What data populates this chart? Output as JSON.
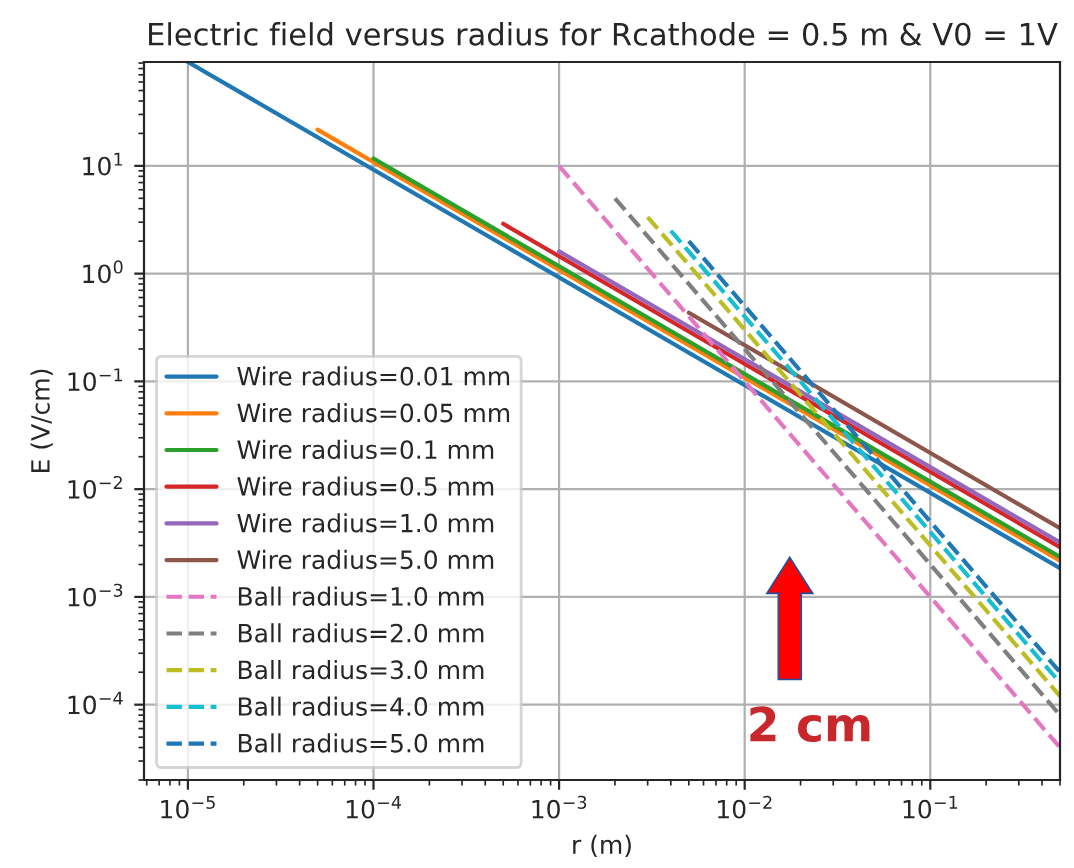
{
  "chart_data": {
    "type": "line",
    "title": "Electric field versus radius for Rcathode = 0.5 m & V0 = 1V",
    "xlabel": "r (m)",
    "ylabel": "E (V/cm)",
    "log": "xy",
    "grid": true,
    "legend": "bottom left",
    "marker": "none",
    "xlim": [
      5.8e-06,
      0.5
    ],
    "ylim": [
      2e-05,
      92
    ],
    "xticks": [
      {
        "value": 1e-05,
        "label": "10$^{−5}$"
      },
      {
        "value": 0.0001,
        "label": "10$^{−4}$"
      },
      {
        "value": 0.001,
        "label": "10$^{−3}$"
      },
      {
        "value": 0.01,
        "label": "10$^{−2}$"
      },
      {
        "value": 0.1,
        "label": "10$^{−1}$"
      }
    ],
    "yticks": [
      {
        "value": 0.0001,
        "label": "10$^{−4}$"
      },
      {
        "value": 0.001,
        "label": "10$^{−3}$"
      },
      {
        "value": 0.01,
        "label": "10$^{−2}$"
      },
      {
        "value": 0.1,
        "label": "10$^{−1}$"
      },
      {
        "value": 1,
        "label": "10$^{0}$"
      },
      {
        "value": 10,
        "label": "10$^{1}$"
      }
    ],
    "series": [
      {
        "name": "Wire radius=0.01 mm",
        "color": "#1f77b4",
        "line_style": "solid",
        "x": [
          1e-05,
          0.5
        ],
        "values": [
          92,
          0.00185
        ]
      },
      {
        "name": "Wire radius=0.05 mm",
        "color": "#ff7f0e",
        "line_style": "solid",
        "x": [
          5e-05,
          0.5
        ],
        "values": [
          21.7,
          0.00217
        ]
      },
      {
        "name": "Wire radius=0.1 mm",
        "color": "#2ca02c",
        "line_style": "solid",
        "x": [
          0.0001,
          0.5
        ],
        "values": [
          11.7,
          0.00235
        ]
      },
      {
        "name": "Wire radius=0.5 mm",
        "color": "#d62728",
        "line_style": "solid",
        "x": [
          0.0005,
          0.5
        ],
        "values": [
          2.9,
          0.0029
        ]
      },
      {
        "name": "Wire radius=1.0 mm",
        "color": "#9467bd",
        "line_style": "solid",
        "x": [
          0.001,
          0.5
        ],
        "values": [
          1.61,
          0.0032
        ]
      },
      {
        "name": "Wire radius=5.0 mm",
        "color": "#8c564b",
        "line_style": "solid",
        "x": [
          0.005,
          0.5
        ],
        "values": [
          0.434,
          0.00434
        ]
      },
      {
        "name": "Ball radius=1.0 mm",
        "color": "#e377c2",
        "line_style": "dashed",
        "x": [
          0.001,
          0.5
        ],
        "values": [
          10.0,
          4e-05
        ]
      },
      {
        "name": "Ball radius=2.0 mm",
        "color": "#7f7f7f",
        "line_style": "dashed",
        "x": [
          0.002,
          0.5
        ],
        "values": [
          5.0,
          8e-05
        ]
      },
      {
        "name": "Ball radius=3.0 mm",
        "color": "#bcbd22",
        "line_style": "dashed",
        "x": [
          0.003,
          0.5
        ],
        "values": [
          3.35,
          0.00012
        ]
      },
      {
        "name": "Ball radius=4.0 mm",
        "color": "#17becf",
        "line_style": "dashed",
        "x": [
          0.004,
          0.5
        ],
        "values": [
          2.5,
          0.00016
        ]
      },
      {
        "name": "Ball radius=5.0 mm",
        "color": "#1f77b4",
        "line_style": "dashed",
        "x": [
          0.005,
          0.5
        ],
        "values": [
          2.0,
          0.0002
        ]
      }
    ],
    "annotations": [
      "2 cm"
    ]
  }
}
